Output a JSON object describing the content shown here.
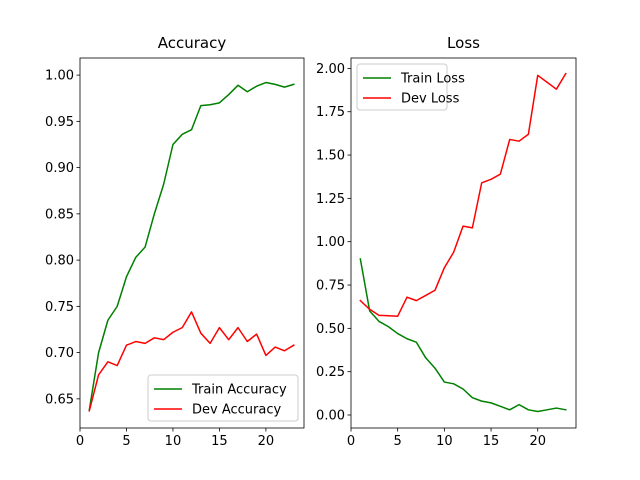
{
  "chart_data": [
    {
      "type": "line",
      "title": "Accuracy",
      "xlabel": "",
      "ylabel": "",
      "xlim": [
        0,
        24.1
      ],
      "ylim": [
        0.6185,
        1.0185
      ],
      "xticks": [
        0,
        5,
        10,
        15,
        20
      ],
      "xtick_labels": [
        "0",
        "5",
        "10",
        "15",
        "20"
      ],
      "yticks": [
        0.65,
        0.7,
        0.75,
        0.8,
        0.85,
        0.9,
        0.95,
        1.0
      ],
      "ytick_labels": [
        "0.65",
        "0.70",
        "0.75",
        "0.80",
        "0.85",
        "0.90",
        "0.95",
        "1.00"
      ],
      "grid": false,
      "legend_position": "lower-right",
      "x": [
        1,
        2,
        3,
        4,
        5,
        6,
        7,
        8,
        9,
        10,
        11,
        12,
        13,
        14,
        15,
        16,
        17,
        18,
        19,
        20,
        21,
        22,
        23
      ],
      "series": [
        {
          "name": "Train Accuracy",
          "color": "#008000",
          "values": [
            0.638,
            0.7,
            0.735,
            0.75,
            0.782,
            0.803,
            0.814,
            0.85,
            0.882,
            0.925,
            0.936,
            0.941,
            0.967,
            0.968,
            0.97,
            0.979,
            0.989,
            0.982,
            0.988,
            0.992,
            0.99,
            0.987,
            0.99
          ]
        },
        {
          "name": "Dev Accuracy",
          "color": "#ff0000",
          "values": [
            0.637,
            0.676,
            0.69,
            0.686,
            0.708,
            0.712,
            0.71,
            0.716,
            0.714,
            0.722,
            0.727,
            0.744,
            0.721,
            0.71,
            0.727,
            0.714,
            0.727,
            0.712,
            0.72,
            0.697,
            0.706,
            0.702,
            0.708
          ]
        }
      ]
    },
    {
      "type": "line",
      "title": "Loss",
      "xlabel": "",
      "ylabel": "",
      "xlim": [
        0,
        24.1
      ],
      "ylim": [
        -0.075,
        2.06
      ],
      "xticks": [
        0,
        5,
        10,
        15,
        20
      ],
      "xtick_labels": [
        "0",
        "5",
        "10",
        "15",
        "20"
      ],
      "yticks": [
        0.0,
        0.25,
        0.5,
        0.75,
        1.0,
        1.25,
        1.5,
        1.75,
        2.0
      ],
      "ytick_labels": [
        "0.00",
        "0.25",
        "0.50",
        "0.75",
        "1.00",
        "1.25",
        "1.50",
        "1.75",
        "2.00"
      ],
      "grid": false,
      "legend_position": "upper-left",
      "x": [
        1,
        2,
        3,
        4,
        5,
        6,
        7,
        8,
        9,
        10,
        11,
        12,
        13,
        14,
        15,
        16,
        17,
        18,
        19,
        20,
        21,
        22,
        23
      ],
      "series": [
        {
          "name": "Train Loss",
          "color": "#008000",
          "values": [
            0.9,
            0.6,
            0.54,
            0.51,
            0.47,
            0.44,
            0.42,
            0.33,
            0.27,
            0.19,
            0.18,
            0.15,
            0.1,
            0.08,
            0.07,
            0.05,
            0.03,
            0.06,
            0.03,
            0.02,
            0.03,
            0.04,
            0.03
          ]
        },
        {
          "name": "Dev Loss",
          "color": "#ff0000",
          "values": [
            0.66,
            0.61,
            0.575,
            0.573,
            0.57,
            0.68,
            0.66,
            0.69,
            0.72,
            0.85,
            0.94,
            1.09,
            1.08,
            1.34,
            1.36,
            1.39,
            1.59,
            1.58,
            1.62,
            1.96,
            1.92,
            1.88,
            1.97
          ]
        }
      ]
    }
  ]
}
